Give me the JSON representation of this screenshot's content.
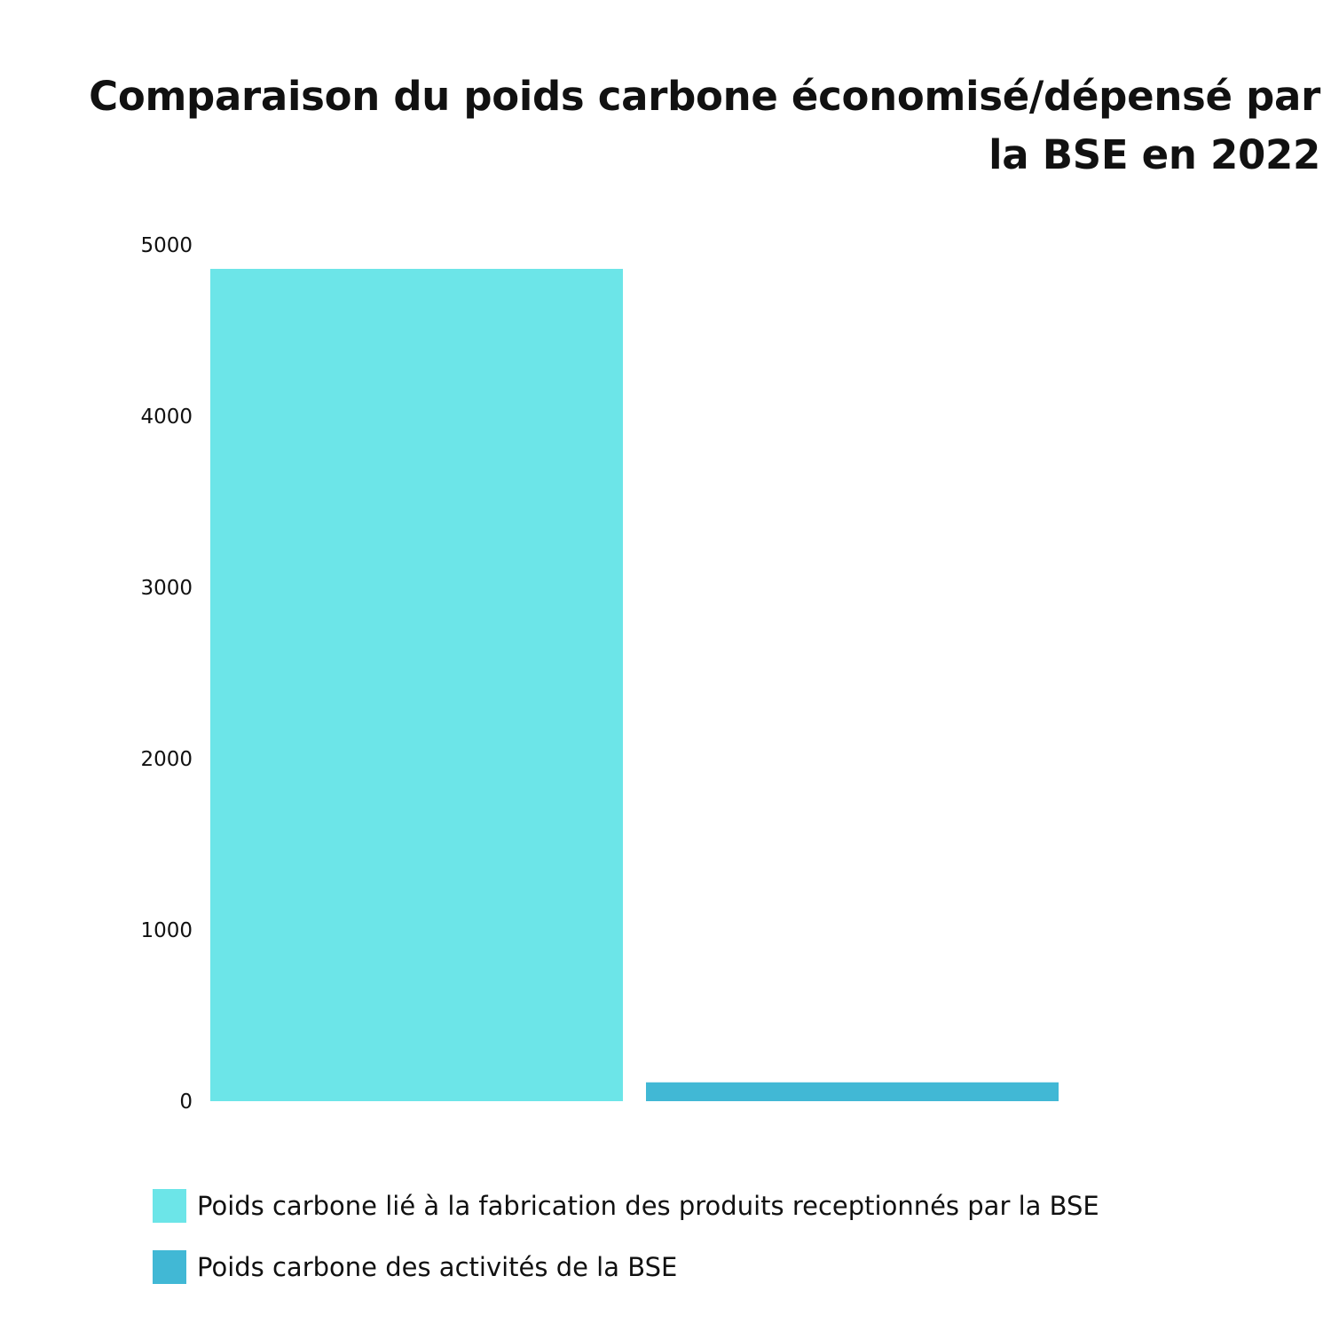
{
  "chart_data": {
    "type": "bar",
    "title_lines": [
      "Comparaison du poids carbone économisé/dépensé par",
      "la BSE en 2022"
    ],
    "categories": [
      "Poids carbone lié à la fabrication des produits receptionnés par la BSE",
      "Poids carbone des activités de la BSE"
    ],
    "values": [
      4860,
      110
    ],
    "colors": [
      "#6ce5e8",
      "#41b8d5"
    ],
    "ylim": [
      0,
      5000
    ],
    "yticks": [
      0,
      1000,
      2000,
      3000,
      4000,
      5000
    ],
    "xlabel": "",
    "ylabel": "",
    "grid": false,
    "legend_position": "bottom-left"
  }
}
